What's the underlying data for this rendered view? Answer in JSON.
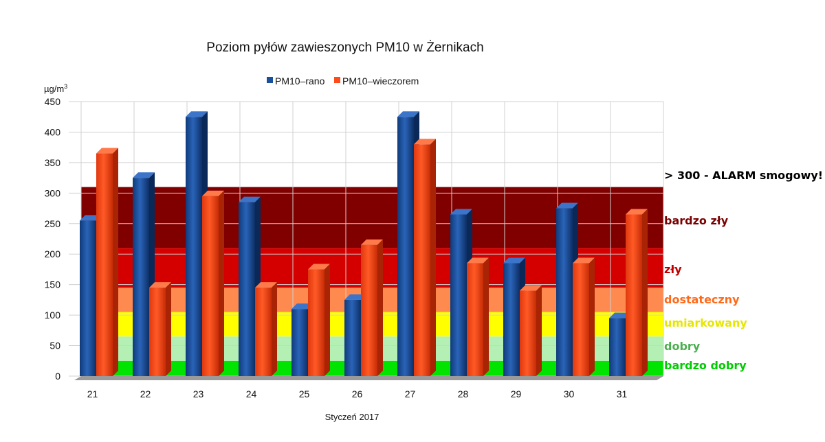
{
  "chart_data": {
    "type": "bar",
    "title": "Poziom pyłów zawieszonych PM10 w Żernikach",
    "xlabel": "Styczeń 2017",
    "ylabel_main": "µg/m",
    "ylabel_sup": "3",
    "ylim": [
      0,
      450
    ],
    "yticks": [
      "0",
      "50",
      "100",
      "150",
      "200",
      "250",
      "300",
      "350",
      "400",
      "450"
    ],
    "categories": [
      "21",
      "22",
      "23",
      "24",
      "25",
      "26",
      "27",
      "28",
      "29",
      "30",
      "31"
    ],
    "series": [
      {
        "name": "PM10–rano",
        "color": "#1a4f9c",
        "values": [
          255,
          325,
          425,
          285,
          110,
          125,
          425,
          265,
          185,
          275,
          95
        ]
      },
      {
        "name": "PM10–wieczorem",
        "color": "#ff4a1c",
        "values": [
          365,
          145,
          295,
          145,
          175,
          215,
          380,
          185,
          140,
          185,
          265
        ]
      }
    ],
    "zones": [
      {
        "label": "bardzo dobry",
        "from": 0,
        "to": 25,
        "color": "#00e400",
        "label_color": "#00cc00"
      },
      {
        "label": "dobry",
        "from": 25,
        "to": 65,
        "color": "#b4f0b4",
        "label_color": "#4caf50"
      },
      {
        "label": "umiarkowany",
        "from": 65,
        "to": 105,
        "color": "#ffff00",
        "label_color": "#e6e600"
      },
      {
        "label": "dostateczny",
        "from": 105,
        "to": 145,
        "color": "#ff8a50",
        "label_color": "#ff6a1a"
      },
      {
        "label": "zły",
        "from": 145,
        "to": 210,
        "color": "#d40000",
        "label_color": "#c00000"
      },
      {
        "label": "bardzo zły",
        "from": 210,
        "to": 310,
        "color": "#800000",
        "label_color": "#7a0000"
      }
    ],
    "alarm_label": "> 300 - ALARM smogowy!",
    "grid": true,
    "legend_position": "top-center"
  }
}
